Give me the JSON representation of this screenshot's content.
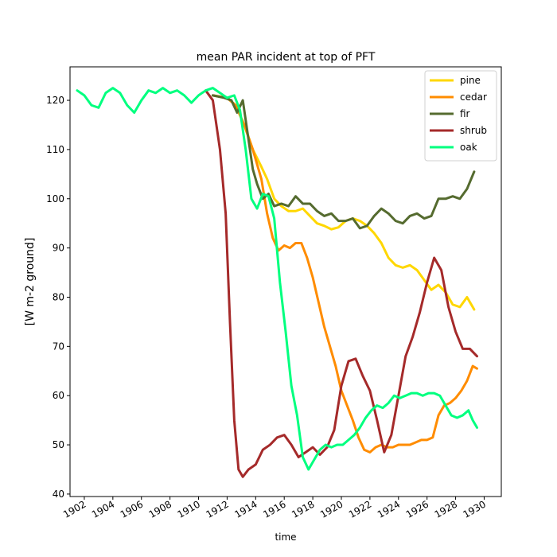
{
  "chart_data": {
    "type": "line",
    "title": "mean PAR incident at top of PFT",
    "xlabel": "time",
    "ylabel": "[W m-2 ground]",
    "xlim": [
      1901.0,
      1931.2
    ],
    "ylim": [
      39.5,
      126.8
    ],
    "xticks": [
      1902,
      1904,
      1906,
      1908,
      1910,
      1912,
      1914,
      1916,
      1918,
      1920,
      1922,
      1924,
      1926,
      1928,
      1930
    ],
    "yticks": [
      40,
      50,
      60,
      70,
      80,
      90,
      100,
      110,
      120
    ],
    "grid": false,
    "legend": "top-right",
    "series": [
      {
        "name": "pine",
        "color": "#ffd700",
        "x": [
          1911.0,
          1912.0,
          1912.6,
          1913.2,
          1913.8,
          1914.4,
          1914.8,
          1915.3,
          1915.8,
          1916.3,
          1916.8,
          1917.3,
          1917.8,
          1918.3,
          1918.8,
          1919.3,
          1919.8,
          1920.3,
          1920.8,
          1921.3,
          1921.8,
          1922.3,
          1922.8,
          1923.3,
          1923.8,
          1924.3,
          1924.8,
          1925.3,
          1925.8,
          1926.3,
          1926.8,
          1927.3,
          1927.8,
          1928.3,
          1928.8,
          1929.3
        ],
        "values": [
          121.0,
          120.5,
          119.0,
          115.0,
          110.0,
          106.5,
          104.0,
          100.0,
          98.5,
          97.5,
          97.5,
          98.0,
          96.5,
          95.0,
          94.5,
          93.8,
          94.2,
          95.5,
          96.0,
          95.5,
          94.5,
          93.0,
          91.0,
          88.0,
          86.5,
          86.0,
          86.5,
          85.5,
          83.5,
          81.5,
          82.5,
          81.0,
          78.5,
          78.0,
          80.0,
          77.5
        ]
      },
      {
        "name": "cedar",
        "color": "#ff8c00",
        "x": [
          1911.0,
          1912.0,
          1912.6,
          1913.2,
          1913.8,
          1914.4,
          1914.8,
          1915.2,
          1915.6,
          1916.0,
          1916.4,
          1916.8,
          1917.2,
          1917.6,
          1918.0,
          1918.4,
          1918.8,
          1919.2,
          1919.6,
          1920.0,
          1920.4,
          1920.8,
          1921.2,
          1921.6,
          1922.0,
          1922.4,
          1922.8,
          1923.2,
          1923.6,
          1924.0,
          1924.4,
          1924.8,
          1925.2,
          1925.6,
          1926.0,
          1926.4,
          1926.8,
          1927.2,
          1927.6,
          1928.0,
          1928.4,
          1928.8,
          1929.2,
          1929.5
        ],
        "values": [
          121.0,
          120.5,
          119.0,
          115.0,
          110.0,
          104.0,
          97.0,
          92.0,
          89.5,
          90.5,
          90.0,
          91.0,
          91.0,
          88.0,
          84.0,
          79.0,
          74.0,
          70.0,
          66.0,
          61.0,
          58.0,
          55.0,
          51.5,
          49.0,
          48.5,
          49.5,
          50.0,
          49.5,
          49.5,
          50.0,
          50.0,
          50.0,
          50.5,
          51.0,
          51.0,
          51.5,
          56.0,
          58.0,
          58.5,
          59.5,
          61.0,
          63.0,
          66.0,
          65.5
        ]
      },
      {
        "name": "fir",
        "color": "#556b2f",
        "x": [
          1911.0,
          1911.8,
          1912.3,
          1912.7,
          1913.1,
          1913.5,
          1913.8,
          1914.1,
          1914.5,
          1914.9,
          1915.3,
          1915.8,
          1916.3,
          1916.8,
          1917.3,
          1917.8,
          1918.3,
          1918.8,
          1919.3,
          1919.8,
          1920.3,
          1920.8,
          1921.3,
          1921.8,
          1922.3,
          1922.8,
          1923.3,
          1923.8,
          1924.3,
          1924.8,
          1925.3,
          1925.8,
          1926.3,
          1926.8,
          1927.3,
          1927.8,
          1928.3,
          1928.8,
          1929.3
        ],
        "values": [
          121.0,
          120.5,
          120.0,
          117.5,
          120.0,
          112.0,
          106.0,
          103.0,
          100.0,
          101.0,
          98.5,
          99.0,
          98.5,
          100.5,
          99.0,
          99.0,
          97.5,
          96.5,
          97.0,
          95.5,
          95.5,
          96.0,
          94.0,
          94.5,
          96.5,
          98.0,
          97.0,
          95.5,
          95.0,
          96.5,
          97.0,
          96.0,
          96.5,
          100.0,
          100.0,
          100.5,
          100.0,
          102.0,
          105.5
        ]
      },
      {
        "name": "shrub",
        "color": "#a52a2a",
        "x": [
          1910.5,
          1911.0,
          1911.5,
          1911.9,
          1912.2,
          1912.5,
          1912.8,
          1913.1,
          1913.5,
          1914.0,
          1914.5,
          1915.0,
          1915.5,
          1916.0,
          1916.5,
          1917.0,
          1917.5,
          1918.0,
          1918.5,
          1919.0,
          1919.5,
          1920.0,
          1920.5,
          1921.0,
          1921.5,
          1922.0,
          1922.5,
          1923.0,
          1923.5,
          1924.0,
          1924.5,
          1925.0,
          1925.5,
          1926.0,
          1926.5,
          1927.0,
          1927.5,
          1928.0,
          1928.5,
          1929.0,
          1929.5
        ],
        "values": [
          122.0,
          120.0,
          110.0,
          97.0,
          75.0,
          55.0,
          45.0,
          43.5,
          45.0,
          46.0,
          49.0,
          50.0,
          51.5,
          52.0,
          50.0,
          47.5,
          48.5,
          49.5,
          48.0,
          49.5,
          53.0,
          62.0,
          67.0,
          67.5,
          64.0,
          61.0,
          55.0,
          48.5,
          52.0,
          60.0,
          68.0,
          72.0,
          77.0,
          83.0,
          88.0,
          85.5,
          78.0,
          73.0,
          69.5,
          69.5,
          68.0
        ]
      },
      {
        "name": "oak",
        "color": "#00ff7f",
        "x": [
          1901.5,
          1902.0,
          1902.5,
          1903.0,
          1903.5,
          1904.0,
          1904.5,
          1905.0,
          1905.5,
          1906.0,
          1906.5,
          1907.0,
          1907.5,
          1908.0,
          1908.5,
          1909.0,
          1909.5,
          1910.0,
          1910.5,
          1911.0,
          1911.5,
          1912.0,
          1912.5,
          1912.9,
          1913.3,
          1913.7,
          1914.1,
          1914.5,
          1914.9,
          1915.3,
          1915.7,
          1916.1,
          1916.5,
          1916.9,
          1917.3,
          1917.7,
          1918.1,
          1918.5,
          1918.9,
          1919.3,
          1919.7,
          1920.1,
          1920.5,
          1920.9,
          1921.3,
          1921.7,
          1922.1,
          1922.5,
          1922.9,
          1923.3,
          1923.7,
          1924.1,
          1924.5,
          1924.9,
          1925.3,
          1925.7,
          1926.1,
          1926.5,
          1926.9,
          1927.3,
          1927.7,
          1928.1,
          1928.5,
          1928.9,
          1929.2,
          1929.5
        ],
        "values": [
          122.0,
          121.0,
          119.0,
          118.5,
          121.5,
          122.5,
          121.5,
          119.0,
          117.5,
          120.0,
          122.0,
          121.5,
          122.5,
          121.5,
          122.0,
          121.0,
          119.5,
          121.0,
          122.0,
          122.5,
          121.5,
          120.5,
          121.0,
          118.0,
          110.0,
          100.0,
          98.0,
          101.0,
          100.5,
          96.0,
          83.0,
          73.0,
          62.0,
          56.0,
          47.5,
          45.0,
          47.0,
          49.0,
          50.0,
          49.5,
          50.0,
          50.0,
          51.0,
          52.0,
          53.5,
          55.5,
          57.0,
          58.0,
          57.5,
          58.5,
          60.0,
          59.5,
          60.0,
          60.5,
          60.5,
          60.0,
          60.5,
          60.5,
          60.0,
          58.0,
          56.0,
          55.5,
          56.0,
          57.0,
          55.0,
          53.5
        ]
      }
    ]
  }
}
